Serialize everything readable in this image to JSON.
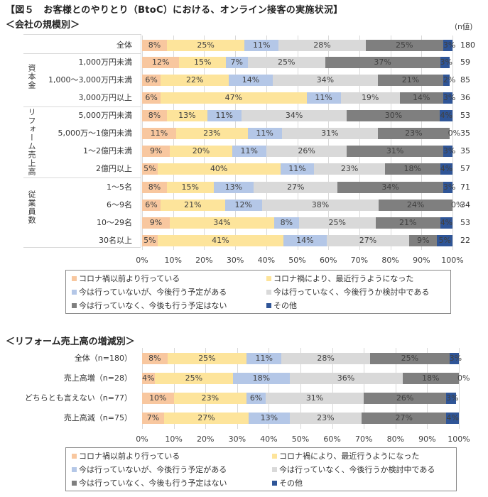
{
  "title": "【図５　お客様とのやりとり（BtoC）における、オンライン接客の実施状況】",
  "colors": {
    "before_covid": "#f8c79f",
    "due_to_covid": "#fde49b",
    "planned": "#b4c7e7",
    "considering": "#d9d9d9",
    "no_plan": "#7f7f7f",
    "other": "#2f5597"
  },
  "legend": [
    {
      "key": "before_covid",
      "label": "コロナ禍以前より行っている"
    },
    {
      "key": "due_to_covid",
      "label": "コロナ禍により、最近行うようになった"
    },
    {
      "key": "planned",
      "label": "今は行っていないが、今後行う予定がある"
    },
    {
      "key": "considering",
      "label": "今は行っていなく、今後行うか検討中である"
    },
    {
      "key": "no_plan",
      "label": "今は行っていなく、今後も行う予定はない"
    },
    {
      "key": "other",
      "label": "その他"
    }
  ],
  "chart_data": [
    {
      "type": "bar",
      "orientation": "horizontal",
      "stacked": "percent",
      "title": "＜会社の規模別＞",
      "n_unit_label": "(n値)",
      "xlabel": "",
      "ylabel": "",
      "xlim": [
        0,
        100
      ],
      "x_ticks": [
        "0%",
        "10%",
        "20%",
        "30%",
        "40%",
        "50%",
        "60%",
        "70%",
        "80%",
        "90%",
        "100%"
      ],
      "grid": true,
      "legend_position": "bottom",
      "groups": [
        {
          "label": "",
          "rows": [
            0
          ]
        },
        {
          "label": "資本金",
          "rows": [
            1,
            2,
            3
          ]
        },
        {
          "label": "リフォーム売上高",
          "rows": [
            4,
            5,
            6,
            7
          ]
        },
        {
          "label": "従業員数",
          "rows": [
            8,
            9,
            10,
            11
          ]
        }
      ],
      "categories": [
        "全体",
        "1,000万円未満",
        "1,000～3,000万円未満",
        "3,000万円以上",
        "5,000万円未満",
        "5,000万～1億円未満",
        "1～2億円未満",
        "2億円以上",
        "1～5名",
        "6～9名",
        "10～29名",
        "30名以上"
      ],
      "n": [
        180,
        59,
        85,
        36,
        53,
        35,
        35,
        57,
        71,
        34,
        53,
        22
      ],
      "series": [
        {
          "name": "コロナ禍以前より行っている",
          "values": [
            8,
            12,
            6,
            6,
            8,
            11,
            9,
            5,
            8,
            6,
            9,
            5
          ]
        },
        {
          "name": "コロナ禍により、最近行うようになった",
          "values": [
            25,
            15,
            22,
            47,
            13,
            23,
            20,
            40,
            15,
            21,
            34,
            41
          ]
        },
        {
          "name": "今は行っていないが、今後行う予定がある",
          "values": [
            11,
            7,
            14,
            11,
            11,
            11,
            11,
            11,
            13,
            12,
            8,
            14
          ]
        },
        {
          "name": "今は行っていなく、今後行うか検討中である",
          "values": [
            28,
            25,
            34,
            19,
            34,
            31,
            26,
            23,
            27,
            38,
            25,
            27
          ]
        },
        {
          "name": "今は行っていなく、今後も行う予定はない",
          "values": [
            25,
            37,
            21,
            14,
            30,
            23,
            31,
            18,
            34,
            24,
            21,
            9
          ]
        },
        {
          "name": "その他",
          "values": [
            3,
            3,
            2,
            3,
            4,
            0,
            3,
            4,
            3,
            0,
            4,
            5
          ]
        }
      ]
    },
    {
      "type": "bar",
      "orientation": "horizontal",
      "stacked": "percent",
      "title": "＜リフォーム売上高の増減別＞",
      "xlabel": "",
      "ylabel": "",
      "xlim": [
        0,
        100
      ],
      "x_ticks": [
        "0%",
        "10%",
        "20%",
        "30%",
        "40%",
        "50%",
        "60%",
        "70%",
        "80%",
        "90%",
        "100%"
      ],
      "grid": true,
      "legend_position": "bottom",
      "categories": [
        "全体（n=180）",
        "売上高増（n=28）",
        "どちらとも言えない（n=77）",
        "売上高減（n=75）"
      ],
      "series": [
        {
          "name": "コロナ禍以前より行っている",
          "values": [
            8,
            4,
            10,
            7
          ]
        },
        {
          "name": "コロナ禍により、最近行うようになった",
          "values": [
            25,
            25,
            23,
            27
          ]
        },
        {
          "name": "今は行っていないが、今後行う予定がある",
          "values": [
            11,
            18,
            6,
            13
          ]
        },
        {
          "name": "今は行っていなく、今後行うか検討中である",
          "values": [
            28,
            36,
            31,
            23
          ]
        },
        {
          "name": "今は行っていなく、今後も行う予定はない",
          "values": [
            25,
            18,
            26,
            27
          ]
        },
        {
          "name": "その他",
          "values": [
            3,
            0,
            3,
            4
          ]
        }
      ]
    }
  ]
}
